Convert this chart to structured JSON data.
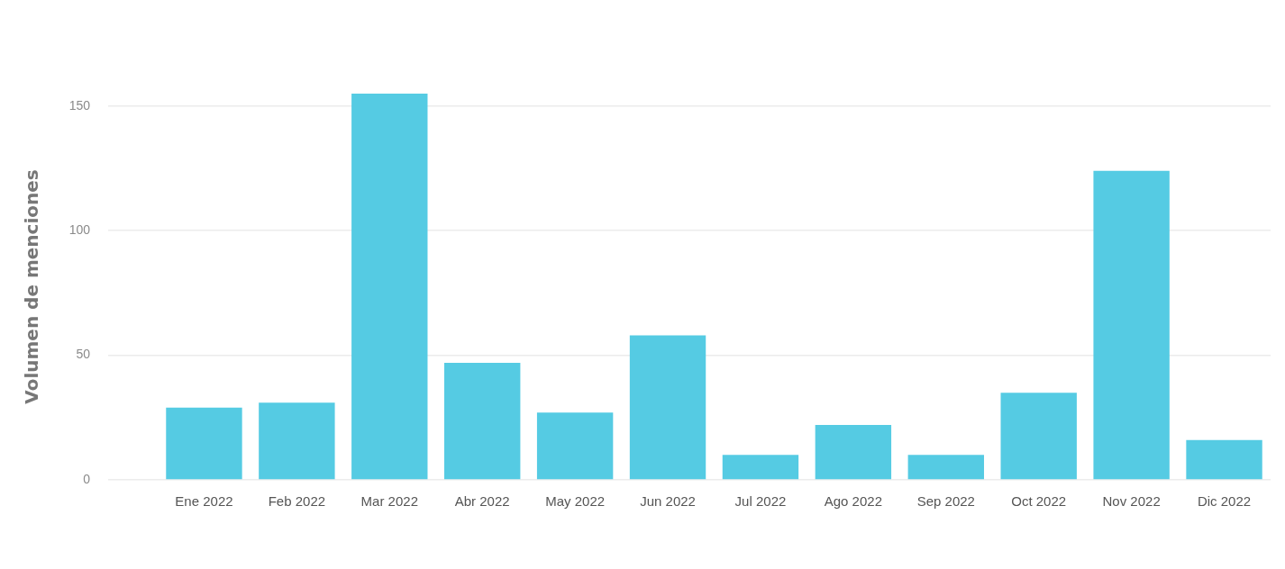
{
  "chart_data": {
    "type": "bar",
    "ylabel": "Volumen de menciones",
    "categories": [
      "Ene 2022",
      "Feb 2022",
      "Mar 2022",
      "Abr 2022",
      "May 2022",
      "Jun 2022",
      "Jul 2022",
      "Ago 2022",
      "Sep 2022",
      "Oct 2022",
      "Nov 2022",
      "Dic 2022"
    ],
    "values": [
      29,
      31,
      155,
      47,
      27,
      58,
      10,
      22,
      10,
      35,
      124,
      16
    ],
    "color": "#55cbe3",
    "ylim": [
      0,
      155
    ],
    "yticks": [
      0,
      50,
      100,
      150
    ],
    "grid": "y"
  }
}
